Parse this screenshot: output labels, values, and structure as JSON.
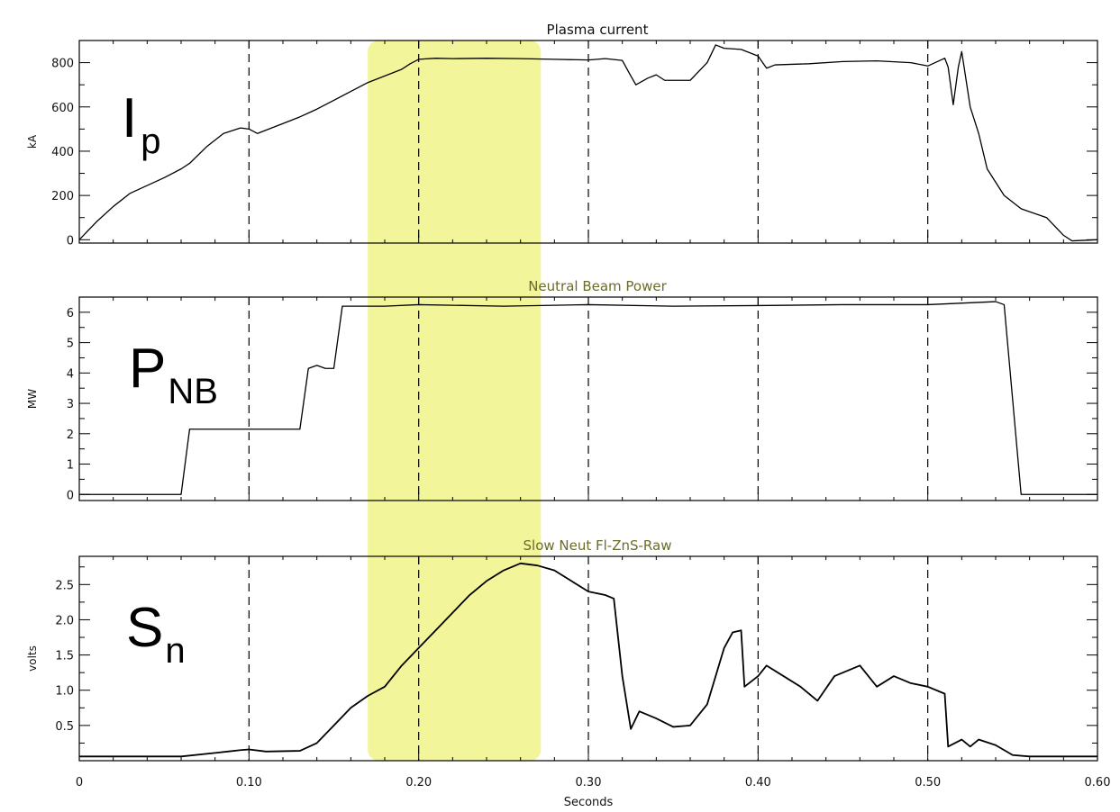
{
  "highlight": {
    "x_range": [
      0.17,
      0.272
    ],
    "color": "#f2f59a"
  },
  "shared_x": {
    "label": "Seconds",
    "range": [
      0,
      0.6
    ],
    "ticks": [
      "0",
      "0.10",
      "0.20",
      "0.30",
      "0.40",
      "0.50",
      "0.60"
    ],
    "tick_values": [
      0,
      0.1,
      0.2,
      0.3,
      0.4,
      0.5,
      0.6
    ],
    "vertical_dashed_lines_at": [
      0.1,
      0.2,
      0.3,
      0.4,
      0.5
    ]
  },
  "chart_data": [
    {
      "type": "line",
      "title": "Plasma current",
      "title_color": "#111111",
      "ylabel": "kA",
      "big_label": {
        "main": "I",
        "sub": "p"
      },
      "ylim": [
        -15,
        900
      ],
      "yticks": [
        0,
        200,
        400,
        600,
        800
      ],
      "ytick_labels": [
        "0",
        "200",
        "400",
        "600",
        "800"
      ],
      "series": [
        {
          "values": [
            [
              0,
              0
            ],
            [
              0.01,
              80
            ],
            [
              0.02,
              150
            ],
            [
              0.03,
              210
            ],
            [
              0.05,
              280
            ],
            [
              0.06,
              320
            ],
            [
              0.065,
              345
            ],
            [
              0.075,
              420
            ],
            [
              0.085,
              480
            ],
            [
              0.095,
              505
            ],
            [
              0.1,
              500
            ],
            [
              0.105,
              480
            ],
            [
              0.12,
              525
            ],
            [
              0.13,
              555
            ],
            [
              0.14,
              590
            ],
            [
              0.15,
              630
            ],
            [
              0.16,
              670
            ],
            [
              0.17,
              710
            ],
            [
              0.18,
              740
            ],
            [
              0.19,
              770
            ],
            [
              0.195,
              795
            ],
            [
              0.2,
              815
            ],
            [
              0.21,
              820
            ],
            [
              0.22,
              818
            ],
            [
              0.24,
              820
            ],
            [
              0.26,
              818
            ],
            [
              0.28,
              815
            ],
            [
              0.3,
              812
            ],
            [
              0.31,
              818
            ],
            [
              0.32,
              810
            ],
            [
              0.325,
              740
            ],
            [
              0.328,
              700
            ],
            [
              0.335,
              730
            ],
            [
              0.34,
              745
            ],
            [
              0.345,
              720
            ],
            [
              0.36,
              720
            ],
            [
              0.37,
              800
            ],
            [
              0.375,
              880
            ],
            [
              0.38,
              865
            ],
            [
              0.39,
              860
            ],
            [
              0.4,
              830
            ],
            [
              0.405,
              775
            ],
            [
              0.41,
              790
            ],
            [
              0.43,
              795
            ],
            [
              0.45,
              805
            ],
            [
              0.47,
              808
            ],
            [
              0.49,
              800
            ],
            [
              0.5,
              785
            ],
            [
              0.51,
              820
            ],
            [
              0.512,
              780
            ],
            [
              0.515,
              610
            ],
            [
              0.518,
              780
            ],
            [
              0.52,
              850
            ],
            [
              0.525,
              600
            ],
            [
              0.53,
              480
            ],
            [
              0.535,
              320
            ],
            [
              0.545,
              200
            ],
            [
              0.555,
              140
            ],
            [
              0.57,
              100
            ],
            [
              0.58,
              20
            ],
            [
              0.585,
              -5
            ],
            [
              0.6,
              0
            ]
          ]
        }
      ]
    },
    {
      "type": "line",
      "title": "Neutral Beam Power",
      "title_color": "#6b6b2a",
      "ylabel": "MW",
      "big_label": {
        "main": "P",
        "sub": "NB"
      },
      "ylim": [
        -0.2,
        6.5
      ],
      "yticks": [
        0,
        1,
        2,
        3,
        4,
        5,
        6
      ],
      "ytick_labels": [
        "0",
        "1",
        "2",
        "3",
        "4",
        "5",
        "6"
      ],
      "series": [
        {
          "values": [
            [
              0,
              0
            ],
            [
              0.06,
              0
            ],
            [
              0.065,
              2.15
            ],
            [
              0.1,
              2.15
            ],
            [
              0.13,
              2.15
            ],
            [
              0.135,
              4.15
            ],
            [
              0.14,
              4.25
            ],
            [
              0.145,
              4.15
            ],
            [
              0.15,
              4.15
            ],
            [
              0.155,
              6.2
            ],
            [
              0.18,
              6.2
            ],
            [
              0.2,
              6.25
            ],
            [
              0.25,
              6.2
            ],
            [
              0.3,
              6.25
            ],
            [
              0.35,
              6.2
            ],
            [
              0.4,
              6.22
            ],
            [
              0.45,
              6.25
            ],
            [
              0.5,
              6.25
            ],
            [
              0.54,
              6.35
            ],
            [
              0.545,
              6.25
            ],
            [
              0.555,
              0
            ],
            [
              0.6,
              0
            ]
          ]
        }
      ]
    },
    {
      "type": "line",
      "title": "Slow Neut Fl-ZnS-Raw",
      "title_color": "#6b6b2a",
      "ylabel": "volts",
      "big_label": {
        "main": "S",
        "sub": "n"
      },
      "ylim": [
        0,
        2.9
      ],
      "yticks": [
        0.5,
        1.0,
        1.5,
        2.0,
        2.5
      ],
      "ytick_labels": [
        "0.5",
        "1.0",
        "1.5",
        "2.0",
        "2.5"
      ],
      "series": [
        {
          "values": [
            [
              0,
              0.06
            ],
            [
              0.06,
              0.06
            ],
            [
              0.08,
              0.11
            ],
            [
              0.095,
              0.15
            ],
            [
              0.1,
              0.16
            ],
            [
              0.11,
              0.13
            ],
            [
              0.13,
              0.14
            ],
            [
              0.14,
              0.25
            ],
            [
              0.15,
              0.5
            ],
            [
              0.16,
              0.75
            ],
            [
              0.17,
              0.92
            ],
            [
              0.18,
              1.05
            ],
            [
              0.19,
              1.35
            ],
            [
              0.2,
              1.6
            ],
            [
              0.21,
              1.85
            ],
            [
              0.22,
              2.1
            ],
            [
              0.23,
              2.35
            ],
            [
              0.24,
              2.55
            ],
            [
              0.25,
              2.7
            ],
            [
              0.26,
              2.8
            ],
            [
              0.27,
              2.77
            ],
            [
              0.28,
              2.7
            ],
            [
              0.29,
              2.55
            ],
            [
              0.3,
              2.4
            ],
            [
              0.31,
              2.35
            ],
            [
              0.315,
              2.3
            ],
            [
              0.32,
              1.2
            ],
            [
              0.325,
              0.45
            ],
            [
              0.33,
              0.7
            ],
            [
              0.34,
              0.6
            ],
            [
              0.35,
              0.48
            ],
            [
              0.36,
              0.5
            ],
            [
              0.37,
              0.8
            ],
            [
              0.38,
              1.6
            ],
            [
              0.385,
              1.82
            ],
            [
              0.39,
              1.85
            ],
            [
              0.392,
              1.05
            ],
            [
              0.4,
              1.2
            ],
            [
              0.405,
              1.35
            ],
            [
              0.415,
              1.2
            ],
            [
              0.425,
              1.05
            ],
            [
              0.435,
              0.85
            ],
            [
              0.445,
              1.2
            ],
            [
              0.46,
              1.35
            ],
            [
              0.47,
              1.05
            ],
            [
              0.48,
              1.2
            ],
            [
              0.49,
              1.1
            ],
            [
              0.5,
              1.05
            ],
            [
              0.51,
              0.95
            ],
            [
              0.512,
              0.2
            ],
            [
              0.52,
              0.3
            ],
            [
              0.525,
              0.2
            ],
            [
              0.53,
              0.3
            ],
            [
              0.54,
              0.22
            ],
            [
              0.55,
              0.08
            ],
            [
              0.56,
              0.06
            ],
            [
              0.6,
              0.06
            ]
          ]
        }
      ]
    }
  ]
}
